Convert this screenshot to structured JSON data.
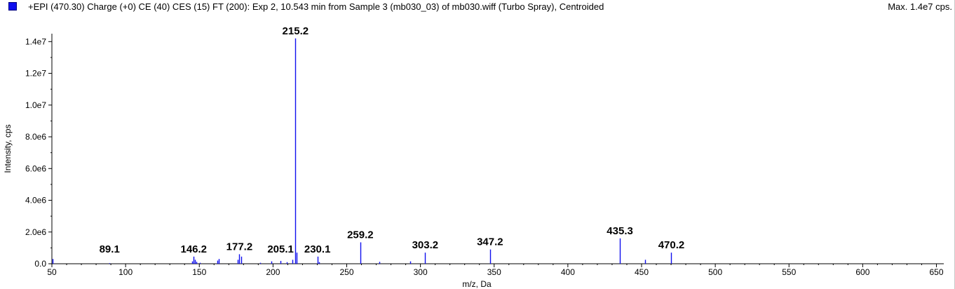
{
  "header": {
    "title": "+EPI (470.30) Charge (+0) CE (40) CES (15) FT (200): Exp 2, 10.543 min from Sample 3 (mb030_03) of mb030.wiff (Turbo Spray), Centroided",
    "max_label": "Max. 1.4e7 cps.",
    "series_color": "#1010ee"
  },
  "chart_data": {
    "type": "bar",
    "xlabel": "m/z, Da",
    "ylabel": "Intensity, cps",
    "xlim": [
      50,
      655
    ],
    "ylim": [
      0,
      14500000
    ],
    "x_ticks": [
      50,
      100,
      150,
      200,
      250,
      300,
      350,
      400,
      450,
      500,
      550,
      600,
      650
    ],
    "y_ticks": [
      {
        "value": 0,
        "label": "0.0"
      },
      {
        "value": 2000000,
        "label": "2.0e6"
      },
      {
        "value": 4000000,
        "label": "4.0e6"
      },
      {
        "value": 6000000,
        "label": "6.0e6"
      },
      {
        "value": 8000000,
        "label": "8.0e6"
      },
      {
        "value": 10000000,
        "label": "1.0e7"
      },
      {
        "value": 12000000,
        "label": "1.2e7"
      },
      {
        "value": 14000000,
        "label": "1.4e7"
      }
    ],
    "peaks": [
      {
        "mz": 50.5,
        "intensity": 300000
      },
      {
        "mz": 89.1,
        "intensity": 40000
      },
      {
        "mz": 145.0,
        "intensity": 150000
      },
      {
        "mz": 146.2,
        "intensity": 450000
      },
      {
        "mz": 147.2,
        "intensity": 250000
      },
      {
        "mz": 148.2,
        "intensity": 120000
      },
      {
        "mz": 150.2,
        "intensity": 60000
      },
      {
        "mz": 162.1,
        "intensity": 200000
      },
      {
        "mz": 163.1,
        "intensity": 300000
      },
      {
        "mz": 176.2,
        "intensity": 250000
      },
      {
        "mz": 177.2,
        "intensity": 600000
      },
      {
        "mz": 178.2,
        "intensity": 450000
      },
      {
        "mz": 191.1,
        "intensity": 60000
      },
      {
        "mz": 199.1,
        "intensity": 150000
      },
      {
        "mz": 205.1,
        "intensity": 180000
      },
      {
        "mz": 209.1,
        "intensity": 100000
      },
      {
        "mz": 213.1,
        "intensity": 250000
      },
      {
        "mz": 215.2,
        "intensity": 14200000
      },
      {
        "mz": 216.2,
        "intensity": 700000
      },
      {
        "mz": 230.1,
        "intensity": 450000
      },
      {
        "mz": 231.1,
        "intensity": 100000
      },
      {
        "mz": 259.2,
        "intensity": 1350000
      },
      {
        "mz": 272.2,
        "intensity": 120000
      },
      {
        "mz": 293.2,
        "intensity": 150000
      },
      {
        "mz": 303.2,
        "intensity": 700000
      },
      {
        "mz": 347.2,
        "intensity": 900000
      },
      {
        "mz": 435.3,
        "intensity": 1600000
      },
      {
        "mz": 452.3,
        "intensity": 250000
      },
      {
        "mz": 470.2,
        "intensity": 700000
      }
    ],
    "labels": [
      {
        "mz": 89.1,
        "text": "89.1"
      },
      {
        "mz": 146.2,
        "text": "146.2"
      },
      {
        "mz": 177.2,
        "text": "177.2"
      },
      {
        "mz": 205.1,
        "text": "205.1"
      },
      {
        "mz": 215.2,
        "text": "215.2"
      },
      {
        "mz": 230.1,
        "text": "230.1"
      },
      {
        "mz": 259.2,
        "text": "259.2"
      },
      {
        "mz": 303.2,
        "text": "303.2"
      },
      {
        "mz": 347.2,
        "text": "347.2"
      },
      {
        "mz": 435.3,
        "text": "435.3"
      },
      {
        "mz": 470.2,
        "text": "470.2"
      }
    ],
    "grid": false,
    "legend": "top-left"
  }
}
